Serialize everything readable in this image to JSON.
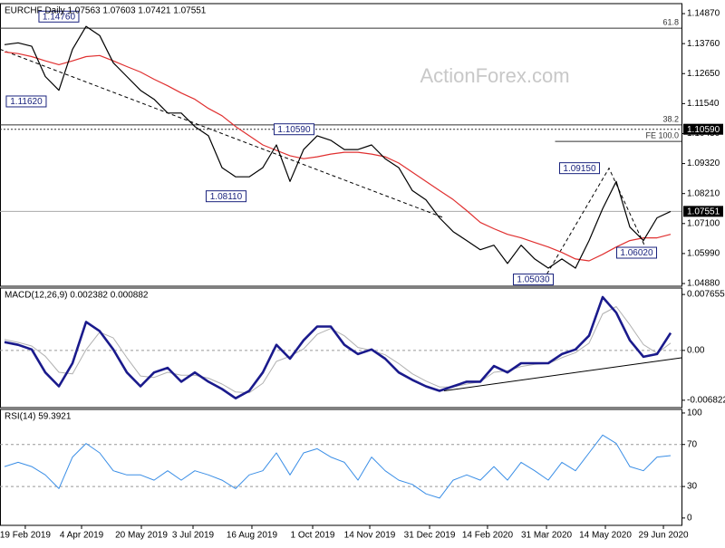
{
  "chart_data": [
    {
      "type": "line",
      "title": "EURCHF Daily  1.07563 1.07603 1.07421 1.07551",
      "watermark": "ActionForex.com",
      "ylim": [
        1.0478,
        1.1524
      ],
      "yticks": [
        {
          "value": 1.1487,
          "label": "1.14870"
        },
        {
          "value": 1.1376,
          "label": "1.13760"
        },
        {
          "value": 1.1265,
          "label": "1.12650"
        },
        {
          "value": 1.1154,
          "label": "1.11540"
        },
        {
          "value": 1.1043,
          "label": "1.10430"
        },
        {
          "value": 1.0932,
          "label": "1.09320"
        },
        {
          "value": 1.0821,
          "label": "1.08210"
        },
        {
          "value": 1.071,
          "label": "1.07100"
        },
        {
          "value": 1.0599,
          "label": "1.05990"
        },
        {
          "value": 1.0488,
          "label": "1.04880"
        }
      ],
      "series": [
        {
          "color": "#000000",
          "width": 1.2,
          "values": [
            1.1372,
            1.1379,
            1.1366,
            1.1254,
            1.1203,
            1.1355,
            1.144,
            1.1406,
            1.1305,
            1.1254,
            1.1203,
            1.117,
            1.1119,
            1.1119,
            1.1069,
            1.1035,
            1.0917,
            1.0883,
            1.0883,
            1.0917,
            1.1001,
            1.0866,
            1.0984,
            1.1035,
            1.1018,
            1.0984,
            1.0984,
            1.1001,
            1.095,
            1.0917,
            1.0832,
            1.0798,
            1.0731,
            1.068,
            1.0647,
            1.0613,
            1.063,
            1.0562,
            1.063,
            1.0579,
            1.0545,
            1.0579,
            1.0545,
            1.0647,
            1.0765,
            1.0866,
            1.0697,
            1.0647,
            1.0731,
            1.0755
          ]
        },
        {
          "color": "#e03030",
          "width": 1.2,
          "values": [
            1.1345,
            1.1339,
            1.1328,
            1.1312,
            1.1298,
            1.1312,
            1.1328,
            1.1332,
            1.1312,
            1.1291,
            1.1271,
            1.1244,
            1.122,
            1.1193,
            1.117,
            1.1136,
            1.1109,
            1.1069,
            1.1035,
            1.1001,
            1.0981,
            1.0961,
            1.095,
            1.0957,
            1.0967,
            1.0974,
            1.0974,
            1.0967,
            1.0957,
            1.0934,
            1.09,
            1.0866,
            1.0832,
            1.0799,
            1.0758,
            1.0714,
            1.0691,
            1.067,
            1.0657,
            1.064,
            1.0623,
            1.0603,
            1.0579,
            1.0572,
            1.0596,
            1.0623,
            1.0647,
            1.0657,
            1.0657,
            1.067
          ]
        }
      ],
      "trendlines": [
        {
          "x": [
            -0.33,
            32.33
          ],
          "y": [
            1.1355,
            1.0731
          ]
        },
        {
          "x": [
            39.67,
            44.47,
            47.33
          ],
          "y": [
            1.0503,
            1.0915,
            1.0602
          ]
        }
      ],
      "levels": [
        {
          "value": 1.1433,
          "label": "61.8"
        },
        {
          "value": 1.1075,
          "label": "38.2"
        },
        {
          "value": 1.1014,
          "label": "FE 100.0",
          "from": 40.5
        }
      ],
      "tags": [
        {
          "value": 1.1059,
          "label": "1.10590",
          "style": "dotted"
        },
        {
          "value": 1.07551,
          "label": "1.07551",
          "style": "solid"
        }
      ],
      "annotations": [
        {
          "x": 4.0,
          "value": 1.1476,
          "label": "1.14760"
        },
        {
          "x": 1.6,
          "value": 1.1162,
          "label": "1.11620"
        },
        {
          "x": 21.3,
          "value": 1.1059,
          "label": "1.10590"
        },
        {
          "x": 16.3,
          "value": 1.0811,
          "label": "1.08110"
        },
        {
          "x": 42.3,
          "value": 1.0915,
          "label": "1.09150"
        },
        {
          "x": 46.5,
          "value": 1.0602,
          "label": "1.06020"
        },
        {
          "x": 38.9,
          "value": 1.0503,
          "label": "1.05030"
        }
      ]
    },
    {
      "type": "line",
      "title": "MACD(12,26,9) 0.002382 0.000882",
      "ylim": [
        -0.007829,
        0.008536
      ],
      "yticks": [
        0.007655,
        {
          "value": 0,
          "label": "0.00"
        },
        -0.006822
      ],
      "levels": [
        {
          "value": 0,
          "style": "dashed"
        }
      ],
      "series": [
        {
          "color": "#1a1a8c",
          "width": 2.6,
          "values": [
            0.00113,
            0.00076,
            0.00013,
            -0.00302,
            -0.00491,
            -0.00176,
            0.0039,
            0.00264,
            0.00013,
            -0.00302,
            -0.00491,
            -0.00302,
            -0.00239,
            -0.00428,
            -0.00302,
            -0.00428,
            -0.00529,
            -0.00655,
            -0.00554,
            -0.00302,
            0.00076,
            -0.00113,
            0.00138,
            0.00327,
            0.00327,
            0.00076,
            -0.0005,
            0.00013,
            -0.00113,
            -0.00302,
            -0.00403,
            -0.00491,
            -0.00554,
            -0.00491,
            -0.00428,
            -0.00428,
            -0.00214,
            -0.00302,
            -0.00176,
            -0.00176,
            -0.00176,
            -0.0005,
            0.00013,
            0.00201,
            0.0073,
            0.00516,
            0.00138,
            -0.00088,
            -0.0005,
            0.00239
          ]
        },
        {
          "color": "#b0b0b0",
          "width": 1,
          "values": [
            0.0015,
            0.0011,
            0.0006,
            -0.0008,
            -0.003,
            -0.0032,
            0.0001,
            0.0025,
            0.0017,
            -0.001,
            -0.0035,
            -0.0037,
            -0.003,
            -0.0034,
            -0.0034,
            -0.0038,
            -0.0046,
            -0.0057,
            -0.0058,
            -0.0045,
            -0.0015,
            -0.0008,
            0.0002,
            0.0022,
            0.003,
            0.002,
            0.0004,
            0,
            -0.0006,
            -0.0018,
            -0.0032,
            -0.0042,
            -0.005,
            -0.005,
            -0.0046,
            -0.0043,
            -0.003,
            -0.0028,
            -0.0022,
            -0.0019,
            -0.0018,
            -0.001,
            -0.0003,
            0.001,
            0.005,
            0.006,
            0.0035,
            0.0008,
            -0.0004,
            0.001
          ]
        }
      ],
      "trendlines": [
        {
          "x": [
            32.33,
            49.8
          ],
          "y": [
            -0.00554,
            -0.00101
          ]
        }
      ]
    },
    {
      "type": "line",
      "title": "RSI(14) 59.3921",
      "ylim": [
        -7,
        103.4
      ],
      "yticks": [
        100,
        70,
        30,
        0
      ],
      "levels": [
        {
          "value": 70,
          "style": "dashed"
        },
        {
          "value": 30,
          "style": "dashed"
        }
      ],
      "series": [
        {
          "color": "#3a8ee6",
          "width": 1,
          "values": [
            49,
            53,
            49,
            41,
            28,
            58,
            71,
            62,
            45,
            41,
            41,
            36,
            45,
            36,
            45,
            41,
            36,
            28,
            41,
            45,
            62,
            41,
            62,
            66,
            58,
            53,
            36,
            58,
            45,
            36,
            32,
            23,
            19,
            36,
            41,
            36,
            49,
            36,
            53,
            45,
            36,
            53,
            45,
            62,
            79,
            71,
            49,
            45,
            58,
            59.39
          ]
        }
      ],
      "xlim": [
        -0.33,
        49.8
      ],
      "xticks": [
        {
          "value": 1.53,
          "label": "19 Feb 2019"
        },
        {
          "value": 5.67,
          "label": "4 Apr 2019"
        },
        {
          "value": 10.07,
          "label": "20 May 2019"
        },
        {
          "value": 13.87,
          "label": "3 Jul 2019"
        },
        {
          "value": 18.2,
          "label": "16 Aug 2019"
        },
        {
          "value": 22.67,
          "label": "1 Oct 2019"
        },
        {
          "value": 26.87,
          "label": "14 Nov 2019"
        },
        {
          "value": 31.27,
          "label": "31 Dec 2019"
        },
        {
          "value": 35.53,
          "label": "14 Feb 2020"
        },
        {
          "value": 39.87,
          "label": "31 Mar 2020"
        },
        {
          "value": 44.2,
          "label": "14 May 2020"
        },
        {
          "value": 48.47,
          "label": "29 Jun 2020"
        }
      ]
    }
  ]
}
